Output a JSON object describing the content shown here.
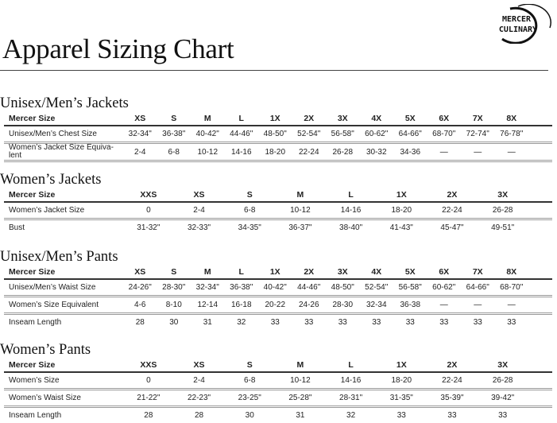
{
  "header": {
    "title": "Apparel Sizing Chart",
    "logo_text": [
      "MERCER",
      "CULINARY"
    ]
  },
  "sections": [
    {
      "title": "Unisex/Men’s Jackets",
      "header": [
        "Mercer Size",
        "XS",
        "S",
        "M",
        "L",
        "1X",
        "2X",
        "3X",
        "4X",
        "5X",
        "6X",
        "7X",
        "8X"
      ],
      "rows": [
        [
          "Unisex/Men’s Chest Size",
          "32-34\"",
          "36-38\"",
          "40-42\"",
          "44-46\"",
          "48-50\"",
          "52-54\"",
          "56-58\"",
          "60-62\"",
          "64-66\"",
          "68-70\"",
          "72-74\"",
          "76-78\""
        ],
        [
          "Women’s Jacket Size Equiva-lent",
          "2-4",
          "6-8",
          "10-12",
          "14-16",
          "18-20",
          "22-24",
          "26-28",
          "30-32",
          "34-36",
          "—",
          "—",
          "—"
        ]
      ]
    },
    {
      "title": "Women’s Jackets",
      "header": [
        "Mercer Size",
        "XXS",
        "XS",
        "S",
        "M",
        "L",
        "1X",
        "2X",
        "3X"
      ],
      "rows": [
        [
          "Women’s Jacket Size",
          "0",
          "2-4",
          "6-8",
          "10-12",
          "14-16",
          "18-20",
          "22-24",
          "26-28"
        ],
        [
          "Bust",
          "31-32\"",
          "32-33\"",
          "34-35\"",
          "36-37\"",
          "38-40\"",
          "41-43\"",
          "45-47\"",
          "49-51\""
        ]
      ]
    },
    {
      "title": "Unisex/Men’s Pants",
      "header": [
        "Mercer Size",
        "XS",
        "S",
        "M",
        "L",
        "1X",
        "2X",
        "3X",
        "4X",
        "5X",
        "6X",
        "7X",
        "8X"
      ],
      "rows": [
        [
          "Unisex/Men’s Waist Size",
          "24-26\"",
          "28-30\"",
          "32-34\"",
          "36-38\"",
          "40-42\"",
          "44-46\"",
          "48-50\"",
          "52-54\"",
          "56-58\"",
          "60-62\"",
          "64-66\"",
          "68-70\""
        ],
        [
          "Women’s Size Equivalent",
          "4-6",
          "8-10",
          "12-14",
          "16-18",
          "20-22",
          "24-26",
          "28-30",
          "32-34",
          "36-38",
          "—",
          "—",
          "—"
        ],
        [
          "Inseam Length",
          "28",
          "30",
          "31",
          "32",
          "33",
          "33",
          "33",
          "33",
          "33",
          "33",
          "33",
          "33"
        ]
      ]
    },
    {
      "title": "Women’s Pants",
      "header": [
        "Mercer Size",
        "XXS",
        "XS",
        "S",
        "M",
        "L",
        "1X",
        "2X",
        "3X"
      ],
      "rows": [
        [
          "Women’s Size",
          "0",
          "2-4",
          "6-8",
          "10-12",
          "14-16",
          "18-20",
          "22-24",
          "26-28"
        ],
        [
          "Women’s Waist Size",
          "21-22\"",
          "22-23\"",
          "23-25\"",
          "25-28\"",
          "28-31\"",
          "31-35\"",
          "35-39\"",
          "39-42\""
        ],
        [
          "Inseam Length",
          "28",
          "28",
          "30",
          "31",
          "32",
          "33",
          "33",
          "33"
        ]
      ]
    }
  ]
}
